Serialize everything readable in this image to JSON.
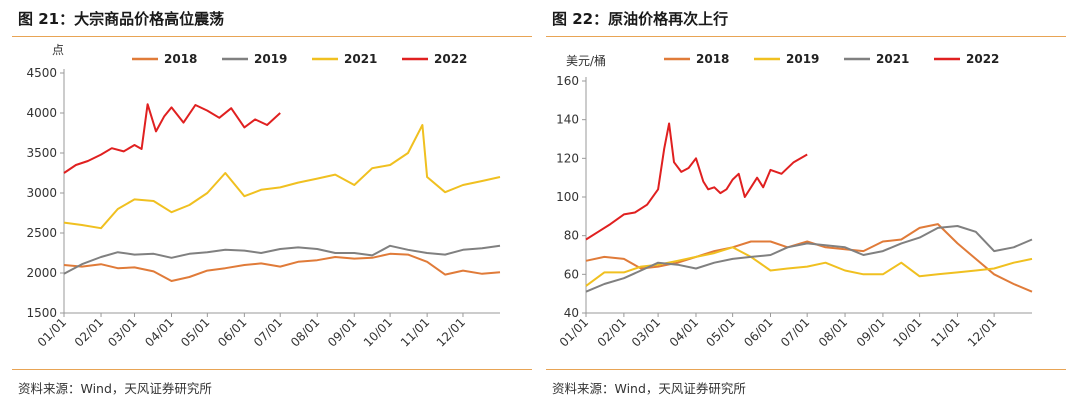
{
  "panels": [
    {
      "title": "图 21：大宗商品价格高位震荡",
      "source": "资料来源：Wind，天风证券研究所",
      "chart_data": {
        "type": "line",
        "title": "",
        "xlabel": "",
        "ylabel": "点",
        "ylim": [
          1500,
          4500
        ],
        "yticks": [
          1500,
          2000,
          2500,
          3000,
          3500,
          4000,
          4500
        ],
        "xticks": [
          "01/01",
          "02/01",
          "03/01",
          "04/01",
          "05/01",
          "06/01",
          "07/01",
          "08/01",
          "09/01",
          "10/01",
          "11/01",
          "12/01"
        ],
        "xlim": [
          0,
          365
        ],
        "grid": false,
        "legend_position": "top",
        "series": [
          {
            "name": "2018",
            "color": "#e07b39",
            "x": [
              0,
              15,
              31,
              45,
              59,
              75,
              90,
              105,
              120,
              135,
              151,
              165,
              181,
              196,
              212,
              227,
              243,
              258,
              273,
              288,
              304,
              319,
              334,
              350,
              365
            ],
            "y": [
              2100,
              2080,
              2110,
              2060,
              2070,
              2020,
              1900,
              1950,
              2030,
              2060,
              2100,
              2120,
              2080,
              2140,
              2160,
              2200,
              2180,
              2190,
              2240,
              2230,
              2140,
              1980,
              2030,
              1990,
              2010
            ]
          },
          {
            "name": "2019",
            "color": "#808080",
            "x": [
              0,
              15,
              31,
              45,
              59,
              75,
              90,
              105,
              120,
              135,
              151,
              165,
              181,
              196,
              212,
              227,
              243,
              258,
              273,
              288,
              304,
              319,
              334,
              350,
              365
            ],
            "y": [
              1990,
              2110,
              2200,
              2260,
              2230,
              2240,
              2190,
              2240,
              2260,
              2290,
              2280,
              2250,
              2300,
              2320,
              2300,
              2250,
              2250,
              2220,
              2340,
              2290,
              2250,
              2230,
              2290,
              2310,
              2340
            ]
          },
          {
            "name": "2021",
            "color": "#f0c020",
            "x": [
              0,
              15,
              31,
              45,
              59,
              75,
              90,
              105,
              120,
              135,
              151,
              165,
              181,
              196,
              212,
              227,
              243,
              258,
              273,
              288,
              300,
              304,
              319,
              334,
              350,
              365
            ],
            "y": [
              2630,
              2600,
              2560,
              2800,
              2920,
              2900,
              2760,
              2850,
              3000,
              3250,
              2960,
              3040,
              3070,
              3130,
              3180,
              3230,
              3100,
              3310,
              3350,
              3500,
              3850,
              3200,
              3010,
              3100,
              3150,
              3200
            ]
          },
          {
            "name": "2022",
            "color": "#e02020",
            "x": [
              0,
              10,
              20,
              31,
              40,
              50,
              59,
              65,
              70,
              77,
              84,
              90,
              100,
              110,
              120,
              130,
              140,
              151,
              160,
              170,
              181
            ],
            "y": [
              3250,
              3350,
              3400,
              3480,
              3560,
              3520,
              3600,
              3550,
              4110,
              3770,
              3960,
              4070,
              3880,
              4100,
              4030,
              3940,
              4060,
              3820,
              3920,
              3850,
              4000
            ]
          }
        ]
      }
    },
    {
      "title": "图 22：原油价格再次上行",
      "source": "资料来源：Wind，天风证券研究所",
      "chart_data": {
        "type": "line",
        "title": "",
        "xlabel": "",
        "ylabel": "美元/桶",
        "ylim": [
          40,
          160
        ],
        "yticks": [
          40,
          60,
          80,
          100,
          120,
          140,
          160
        ],
        "xticks": [
          "01/01",
          "02/01",
          "03/01",
          "04/01",
          "05/01",
          "06/01",
          "07/01",
          "08/01",
          "09/01",
          "10/01",
          "11/01",
          "12/01"
        ],
        "xlim": [
          0,
          365
        ],
        "grid": false,
        "legend_position": "top",
        "series": [
          {
            "name": "2018",
            "color": "#e07b39",
            "x": [
              0,
              15,
              31,
              45,
              59,
              75,
              90,
              105,
              120,
              135,
              151,
              165,
              181,
              196,
              212,
              227,
              243,
              258,
              273,
              288,
              304,
              319,
              334,
              350,
              365
            ],
            "y": [
              67,
              69,
              68,
              63,
              64,
              66,
              69,
              72,
              74,
              77,
              77,
              74,
              77,
              74,
              73,
              72,
              77,
              78,
              84,
              86,
              76,
              68,
              60,
              55,
              51
            ]
          },
          {
            "name": "2019",
            "color": "#f0c020",
            "x": [
              0,
              15,
              31,
              45,
              59,
              75,
              90,
              105,
              120,
              135,
              151,
              165,
              181,
              196,
              212,
              227,
              243,
              258,
              273,
              288,
              304,
              319,
              334,
              350,
              365
            ],
            "y": [
              54,
              61,
              61,
              64,
              65,
              67,
              69,
              71,
              74,
              69,
              62,
              63,
              64,
              66,
              62,
              60,
              60,
              66,
              59,
              60,
              61,
              62,
              63,
              66,
              68
            ]
          },
          {
            "name": "2021",
            "color": "#808080",
            "x": [
              0,
              15,
              31,
              45,
              59,
              75,
              90,
              105,
              120,
              135,
              151,
              165,
              181,
              196,
              212,
              227,
              243,
              258,
              273,
              288,
              304,
              319,
              334,
              350,
              365
            ],
            "y": [
              51,
              55,
              58,
              62,
              66,
              65,
              63,
              66,
              68,
              69,
              70,
              74,
              76,
              75,
              74,
              70,
              72,
              76,
              79,
              84,
              85,
              82,
              72,
              74,
              78
            ]
          },
          {
            "name": "2022",
            "color": "#e02020",
            "x": [
              0,
              10,
              20,
              31,
              40,
              50,
              59,
              64,
              68,
              72,
              78,
              84,
              90,
              96,
              100,
              105,
              110,
              115,
              120,
              125,
              130,
              135,
              140,
              145,
              151,
              160,
              170,
              181
            ],
            "y": [
              78,
              82,
              86,
              91,
              92,
              96,
              104,
              125,
              138,
              118,
              113,
              115,
              120,
              108,
              104,
              105,
              102,
              104,
              109,
              112,
              100,
              105,
              110,
              105,
              114,
              112,
              118,
              122
            ]
          }
        ]
      }
    }
  ]
}
